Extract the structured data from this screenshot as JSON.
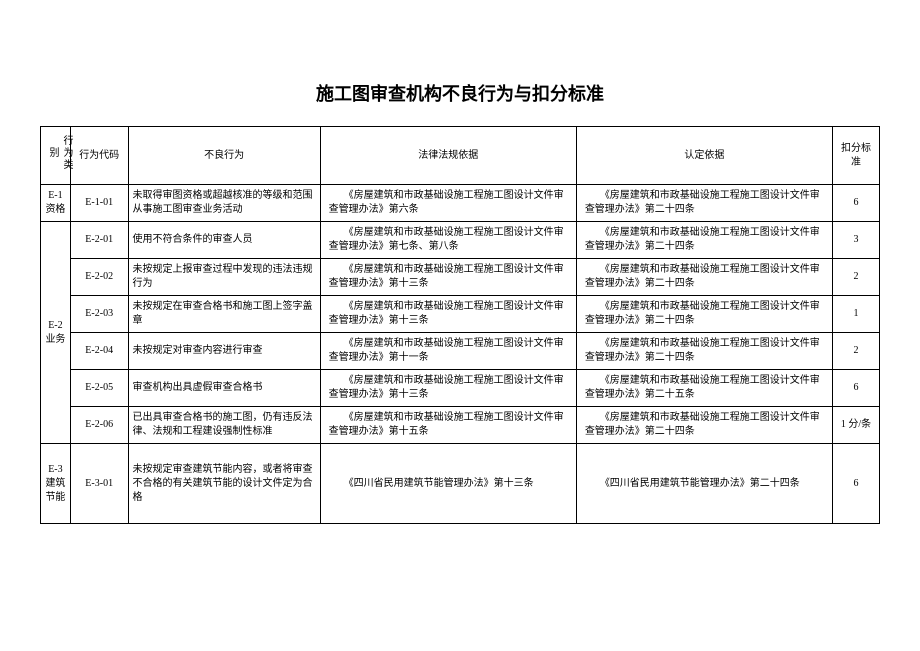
{
  "title": "施工图审查机构不良行为与扣分标准",
  "headers": {
    "category": "行为类别",
    "code": "行为代码",
    "behavior": "不良行为",
    "law": "法律法规依据",
    "basis": "认定依据",
    "score": "扣分标准"
  },
  "groups": [
    {
      "category_label": "E-1 资格",
      "rows": [
        {
          "code": "E-1-01",
          "behavior": "未取得审图资格或超越核准的等级和范围从事施工图审查业务活动",
          "law": "《房屋建筑和市政基础设施工程施工图设计文件审查管理办法》第六条",
          "basis": "《房屋建筑和市政基础设施工程施工图设计文件审查管理办法》第二十四条",
          "score": "6"
        }
      ]
    },
    {
      "category_label": "E-2 业务",
      "rows": [
        {
          "code": "E-2-01",
          "behavior": "使用不符合条件的审查人员",
          "law": "《房屋建筑和市政基础设施工程施工图设计文件审查管理办法》第七条、第八条",
          "basis": "《房屋建筑和市政基础设施工程施工图设计文件审查管理办法》第二十四条",
          "score": "3"
        },
        {
          "code": "E-2-02",
          "behavior": "未按规定上报审查过程中发现的违法违规行为",
          "law": "《房屋建筑和市政基础设施工程施工图设计文件审查管理办法》第十三条",
          "basis": "《房屋建筑和市政基础设施工程施工图设计文件审查管理办法》第二十四条",
          "score": "2"
        },
        {
          "code": "E-2-03",
          "behavior": "未按规定在审查合格书和施工图上签字盖章",
          "law": "《房屋建筑和市政基础设施工程施工图设计文件审查管理办法》第十三条",
          "basis": "《房屋建筑和市政基础设施工程施工图设计文件审查管理办法》第二十四条",
          "score": "1"
        },
        {
          "code": "E-2-04",
          "behavior": "未按规定对审查内容进行审查",
          "law": "《房屋建筑和市政基础设施工程施工图设计文件审查管理办法》第十一条",
          "basis": "《房屋建筑和市政基础设施工程施工图设计文件审查管理办法》第二十四条",
          "score": "2"
        },
        {
          "code": "E-2-05",
          "behavior": "审查机构出具虚假审查合格书",
          "law": "《房屋建筑和市政基础设施工程施工图设计文件审查管理办法》第十三条",
          "basis": "《房屋建筑和市政基础设施工程施工图设计文件审查管理办法》第二十五条",
          "score": "6"
        },
        {
          "code": "E-2-06",
          "behavior": "已出具审查合格书的施工图，仍有违反法律、法规和工程建设强制性标准",
          "law": "《房屋建筑和市政基础设施工程施工图设计文件审查管理办法》第十五条",
          "basis": "《房屋建筑和市政基础设施工程施工图设计文件审查管理办法》第二十四条",
          "score": "1 分/条"
        }
      ]
    },
    {
      "category_label": "E-3 建筑节能",
      "rows": [
        {
          "code": "E-3-01",
          "behavior": "未按规定审查建筑节能内容，或者将审查不合格的有关建筑节能的设计文件定为合格",
          "law": "《四川省民用建筑节能管理办法》第十三条",
          "basis": "《四川省民用建筑节能管理办法》第二十四条",
          "score": "6",
          "tall": true
        }
      ]
    }
  ]
}
